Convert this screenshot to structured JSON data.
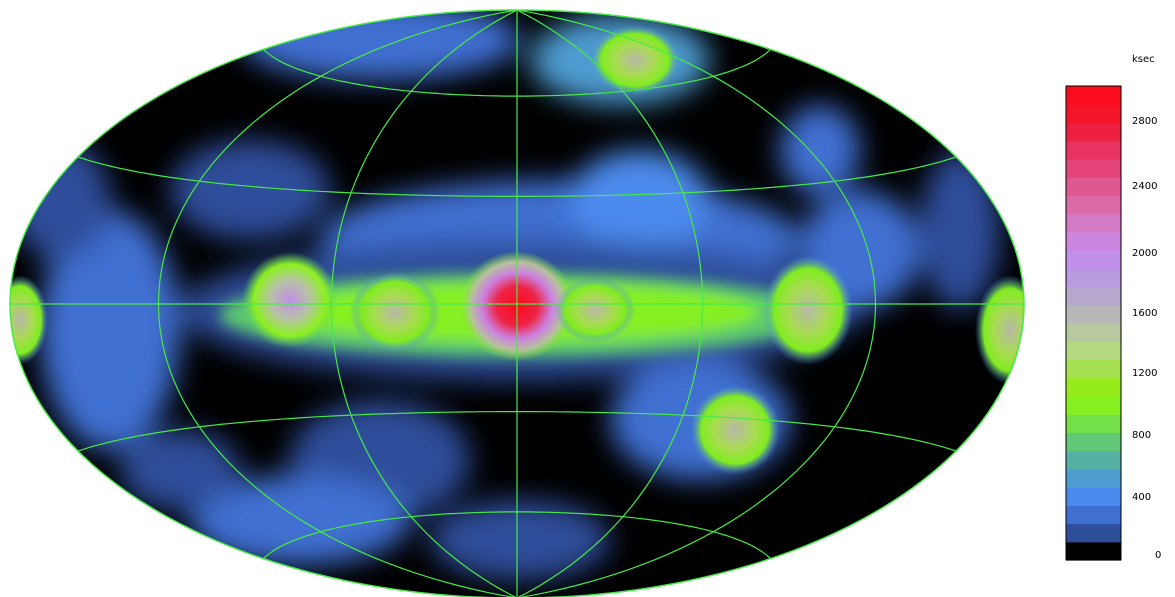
{
  "colorbar": {
    "unit": "ksec",
    "ticks": [
      "2800",
      "2400",
      "2000",
      "1600",
      "1200",
      "800",
      "400",
      "0"
    ],
    "colors": [
      "#000000",
      "#2e4e9a",
      "#3f6fd1",
      "#4b8bee",
      "#4e9bd0",
      "#55b0a3",
      "#62c878",
      "#73e04a",
      "#86f020",
      "#96ec1a",
      "#a4e050",
      "#b3d880",
      "#b8c8a0",
      "#b8b8b8",
      "#b6a8cc",
      "#b89ae0",
      "#c090ea",
      "#cc86e0",
      "#d47ac4",
      "#dc6aa8",
      "#e05890",
      "#e44478",
      "#e83262",
      "#ee2040",
      "#f41428",
      "#fa0c1c"
    ]
  },
  "map": {
    "projection": "Hammer-Aitoff all-sky",
    "grid_color": "#48e848",
    "background": "#000000"
  }
}
